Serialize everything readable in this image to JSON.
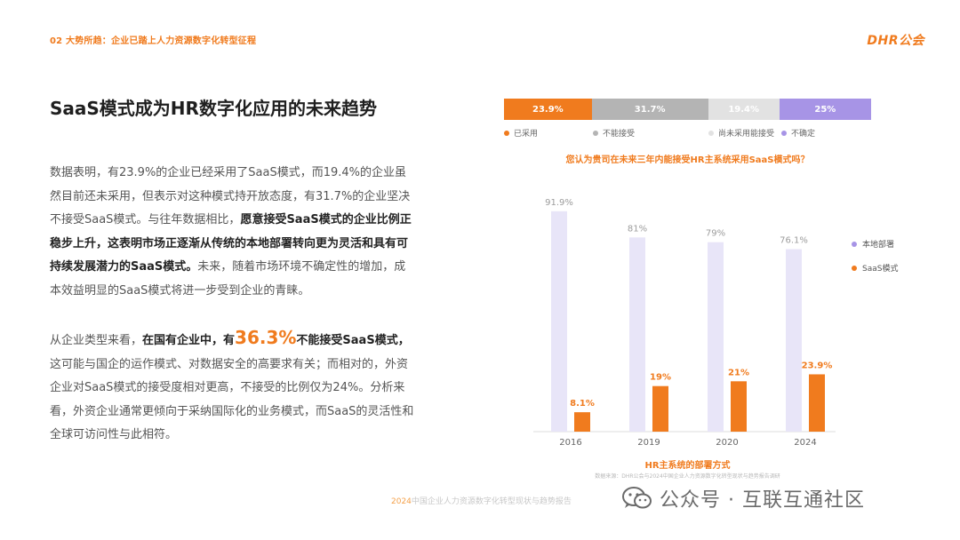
{
  "header": {
    "section": "02 大势所趋：企业已踏上人力资源数字化转型征程",
    "brand": "DHR公会"
  },
  "title": "SaaS模式成为HR数字化应用的未来趋势",
  "paragraph1": {
    "part1": "数据表明，有23.9%的企业已经采用了SaaS模式，而19.4%的企业虽然目前还未采用，但表示对这种模式持开放态度，有31.7%的企业坚决不接受SaaS模式。与往年数据相比，",
    "bold": "愿意接受SaaS模式的企业比例正稳步上升，这表明市场正逐渐从传统的本地部署转向更为灵活和具有可持续发展潜力的SaaS模式。",
    "part2": "未来，随着市场环境不确定性的增加，成本效益明显的SaaS模式将进一步受到企业的青睐。"
  },
  "paragraph2": {
    "part1": "从企业类型来看，",
    "bold1": "在国有企业中，有",
    "highlight": "36.3%",
    "bold2": "不能接受SaaS模式，",
    "part2": "这可能与国企的运作模式、对数据安全的高要求有关；而相对的，外资企业对SaaS模式的接受度相对更高，不接受的比例仅为24%。分析来看，外资企业通常更倾向于采纳国际化的业务模式，而SaaS的灵活性和全球可访问性与此相符。"
  },
  "chart_data": [
    {
      "type": "bar",
      "title": "您认为贵司在未来三年内能接受HR主系统采用SaaS模式吗？",
      "orientation": "horizontal-stacked",
      "series": [
        {
          "name": "已采用",
          "value": 23.9,
          "label": "23.9%",
          "color": "#F07B1E"
        },
        {
          "name": "不能接受",
          "value": 31.7,
          "label": "31.7%",
          "color": "#B4B4B4"
        },
        {
          "name": "尚未采用能接受",
          "value": 19.4,
          "label": "19.4%",
          "color": "#E2E2E2"
        },
        {
          "name": "不确定",
          "value": 25,
          "label": "25%",
          "color": "#A794E6"
        }
      ]
    },
    {
      "type": "bar",
      "title": "HR主系统的部署方式",
      "categories": [
        "2016",
        "2019",
        "2020",
        "2024"
      ],
      "series": [
        {
          "name": "本地部署",
          "values": [
            91.9,
            81,
            79,
            76.1
          ],
          "labels": [
            "91.9%",
            "81%",
            "79%",
            "76.1%"
          ],
          "color": "#E8E5F8"
        },
        {
          "name": "SaaS模式",
          "values": [
            8.1,
            19,
            21,
            23.9
          ],
          "labels": [
            "8.1%",
            "19%",
            "21%",
            "23.9%"
          ],
          "color": "#F07B1E"
        }
      ],
      "ylim": [
        0,
        100
      ],
      "grid": false,
      "legend": "right"
    }
  ],
  "legend_markers": {
    "onprem_color": "#A794E6",
    "saas_color": "#F07B1E"
  },
  "source": "数据来源：DHR公会与2024中国企业人力资源数字化转型现状与趋势报告调研",
  "footer": {
    "year": "2024",
    "report": "中国企业人力资源数字化转型现状与趋势报告"
  },
  "watermark": "公众号 · 互联互通社区"
}
